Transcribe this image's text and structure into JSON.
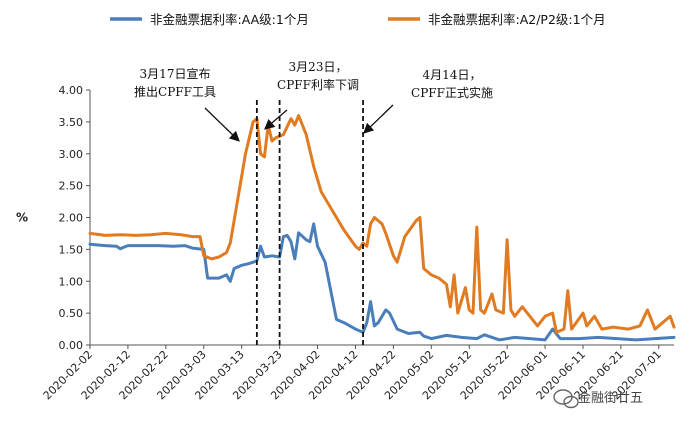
{
  "chart_data": {
    "type": "line",
    "ylabel": "%",
    "ylim": [
      0,
      4
    ],
    "yticks": [
      "0.00",
      "0.50",
      "1.00",
      "1.50",
      "2.00",
      "2.50",
      "3.00",
      "3.50",
      "4.00"
    ],
    "xticks": [
      "2020-02-02",
      "2020-02-12",
      "2020-02-22",
      "2020-03-03",
      "2020-03-13",
      "2020-03-23",
      "2020-04-02",
      "2020-04-12",
      "2020-04-22",
      "2020-05-02",
      "2020-05-12",
      "2020-05-22",
      "2020-06-01",
      "2020-06-11",
      "2020-06-21",
      "2020-07-01"
    ],
    "xrange": [
      "2020-02-02",
      "2020-07-05"
    ],
    "legend_position": "top",
    "series": [
      {
        "name": "非金融票据利率:AA级:1个月",
        "color": "#4a7ebb",
        "points": [
          [
            "2020-02-02",
            1.58
          ],
          [
            "2020-02-06",
            1.56
          ],
          [
            "2020-02-09",
            1.55
          ],
          [
            "2020-02-10",
            1.51
          ],
          [
            "2020-02-12",
            1.56
          ],
          [
            "2020-02-16",
            1.56
          ],
          [
            "2020-02-20",
            1.56
          ],
          [
            "2020-02-24",
            1.55
          ],
          [
            "2020-02-27",
            1.56
          ],
          [
            "2020-02-29",
            1.52
          ],
          [
            "2020-03-03",
            1.5
          ],
          [
            "2020-03-04",
            1.05
          ],
          [
            "2020-03-07",
            1.05
          ],
          [
            "2020-03-09",
            1.1
          ],
          [
            "2020-03-10",
            1.0
          ],
          [
            "2020-03-11",
            1.2
          ],
          [
            "2020-03-13",
            1.25
          ],
          [
            "2020-03-15",
            1.28
          ],
          [
            "2020-03-17",
            1.32
          ],
          [
            "2020-03-18",
            1.55
          ],
          [
            "2020-03-19",
            1.38
          ],
          [
            "2020-03-21",
            1.4
          ],
          [
            "2020-03-23",
            1.38
          ],
          [
            "2020-03-24",
            1.7
          ],
          [
            "2020-03-25",
            1.72
          ],
          [
            "2020-03-26",
            1.62
          ],
          [
            "2020-03-27",
            1.35
          ],
          [
            "2020-03-28",
            1.76
          ],
          [
            "2020-03-30",
            1.65
          ],
          [
            "2020-03-31",
            1.62
          ],
          [
            "2020-04-01",
            1.9
          ],
          [
            "2020-04-02",
            1.55
          ],
          [
            "2020-04-04",
            1.3
          ],
          [
            "2020-04-06",
            0.7
          ],
          [
            "2020-04-07",
            0.4
          ],
          [
            "2020-04-09",
            0.35
          ],
          [
            "2020-04-12",
            0.25
          ],
          [
            "2020-04-14",
            0.2
          ],
          [
            "2020-04-15",
            0.35
          ],
          [
            "2020-04-16",
            0.68
          ],
          [
            "2020-04-17",
            0.3
          ],
          [
            "2020-04-18",
            0.35
          ],
          [
            "2020-04-20",
            0.55
          ],
          [
            "2020-04-21",
            0.5
          ],
          [
            "2020-04-23",
            0.25
          ],
          [
            "2020-04-26",
            0.18
          ],
          [
            "2020-04-29",
            0.2
          ],
          [
            "2020-04-30",
            0.14
          ],
          [
            "2020-05-02",
            0.1
          ],
          [
            "2020-05-06",
            0.15
          ],
          [
            "2020-05-10",
            0.12
          ],
          [
            "2020-05-14",
            0.1
          ],
          [
            "2020-05-16",
            0.16
          ],
          [
            "2020-05-20",
            0.08
          ],
          [
            "2020-05-24",
            0.12
          ],
          [
            "2020-05-28",
            0.1
          ],
          [
            "2020-06-01",
            0.08
          ],
          [
            "2020-06-03",
            0.25
          ],
          [
            "2020-06-05",
            0.1
          ],
          [
            "2020-06-10",
            0.1
          ],
          [
            "2020-06-15",
            0.12
          ],
          [
            "2020-06-20",
            0.1
          ],
          [
            "2020-06-25",
            0.08
          ],
          [
            "2020-06-30",
            0.1
          ],
          [
            "2020-07-05",
            0.12
          ]
        ]
      },
      {
        "name": "非金融票据利率:A2/P2级:1个月",
        "color": "#e07b21",
        "points": [
          [
            "2020-02-02",
            1.75
          ],
          [
            "2020-02-06",
            1.72
          ],
          [
            "2020-02-10",
            1.73
          ],
          [
            "2020-02-14",
            1.72
          ],
          [
            "2020-02-18",
            1.73
          ],
          [
            "2020-02-22",
            1.75
          ],
          [
            "2020-02-26",
            1.73
          ],
          [
            "2020-02-29",
            1.7
          ],
          [
            "2020-03-02",
            1.7
          ],
          [
            "2020-03-03",
            1.4
          ],
          [
            "2020-03-05",
            1.35
          ],
          [
            "2020-03-07",
            1.38
          ],
          [
            "2020-03-09",
            1.45
          ],
          [
            "2020-03-10",
            1.6
          ],
          [
            "2020-03-12",
            2.3
          ],
          [
            "2020-03-14",
            3.0
          ],
          [
            "2020-03-16",
            3.5
          ],
          [
            "2020-03-17",
            3.55
          ],
          [
            "2020-03-18",
            3.0
          ],
          [
            "2020-03-19",
            2.95
          ],
          [
            "2020-03-20",
            3.45
          ],
          [
            "2020-03-21",
            3.2
          ],
          [
            "2020-03-22",
            3.25
          ],
          [
            "2020-03-24",
            3.3
          ],
          [
            "2020-03-26",
            3.55
          ],
          [
            "2020-03-27",
            3.45
          ],
          [
            "2020-03-28",
            3.6
          ],
          [
            "2020-03-30",
            3.3
          ],
          [
            "2020-04-01",
            2.8
          ],
          [
            "2020-04-03",
            2.4
          ],
          [
            "2020-04-06",
            2.1
          ],
          [
            "2020-04-09",
            1.8
          ],
          [
            "2020-04-12",
            1.55
          ],
          [
            "2020-04-13",
            1.5
          ],
          [
            "2020-04-14",
            1.6
          ],
          [
            "2020-04-15",
            1.55
          ],
          [
            "2020-04-16",
            1.9
          ],
          [
            "2020-04-17",
            2.0
          ],
          [
            "2020-04-19",
            1.9
          ],
          [
            "2020-04-20",
            1.75
          ],
          [
            "2020-04-22",
            1.4
          ],
          [
            "2020-04-23",
            1.3
          ],
          [
            "2020-04-25",
            1.7
          ],
          [
            "2020-04-28",
            1.95
          ],
          [
            "2020-04-29",
            2.0
          ],
          [
            "2020-04-30",
            1.2
          ],
          [
            "2020-05-02",
            1.1
          ],
          [
            "2020-05-04",
            1.05
          ],
          [
            "2020-05-06",
            0.95
          ],
          [
            "2020-05-07",
            0.6
          ],
          [
            "2020-05-08",
            1.1
          ],
          [
            "2020-05-09",
            0.5
          ],
          [
            "2020-05-11",
            0.9
          ],
          [
            "2020-05-12",
            0.55
          ],
          [
            "2020-05-13",
            0.5
          ],
          [
            "2020-05-14",
            1.85
          ],
          [
            "2020-05-15",
            0.55
          ],
          [
            "2020-05-16",
            0.5
          ],
          [
            "2020-05-18",
            0.8
          ],
          [
            "2020-05-19",
            0.55
          ],
          [
            "2020-05-21",
            0.5
          ],
          [
            "2020-05-22",
            1.65
          ],
          [
            "2020-05-23",
            0.55
          ],
          [
            "2020-05-24",
            0.45
          ],
          [
            "2020-05-26",
            0.6
          ],
          [
            "2020-05-28",
            0.45
          ],
          [
            "2020-05-30",
            0.3
          ],
          [
            "2020-06-01",
            0.45
          ],
          [
            "2020-06-03",
            0.5
          ],
          [
            "2020-06-04",
            0.2
          ],
          [
            "2020-06-06",
            0.25
          ],
          [
            "2020-06-07",
            0.85
          ],
          [
            "2020-06-08",
            0.25
          ],
          [
            "2020-06-11",
            0.5
          ],
          [
            "2020-06-12",
            0.3
          ],
          [
            "2020-06-14",
            0.45
          ],
          [
            "2020-06-16",
            0.25
          ],
          [
            "2020-06-19",
            0.28
          ],
          [
            "2020-06-23",
            0.25
          ],
          [
            "2020-06-26",
            0.3
          ],
          [
            "2020-06-28",
            0.55
          ],
          [
            "2020-06-30",
            0.25
          ],
          [
            "2020-07-02",
            0.35
          ],
          [
            "2020-07-04",
            0.45
          ],
          [
            "2020-07-05",
            0.28
          ]
        ]
      }
    ],
    "annotations": [
      {
        "lines": [
          "3月17日宣布",
          "推出CPFF工具"
        ],
        "date": "2020-03-17"
      },
      {
        "lines": [
          "3月23日，",
          "CPFF利率下调"
        ],
        "date": "2020-03-23"
      },
      {
        "lines": [
          "4月14日，",
          "CPFF正式实施"
        ],
        "date": "2020-04-14"
      }
    ]
  },
  "watermark": "金融街廿五"
}
